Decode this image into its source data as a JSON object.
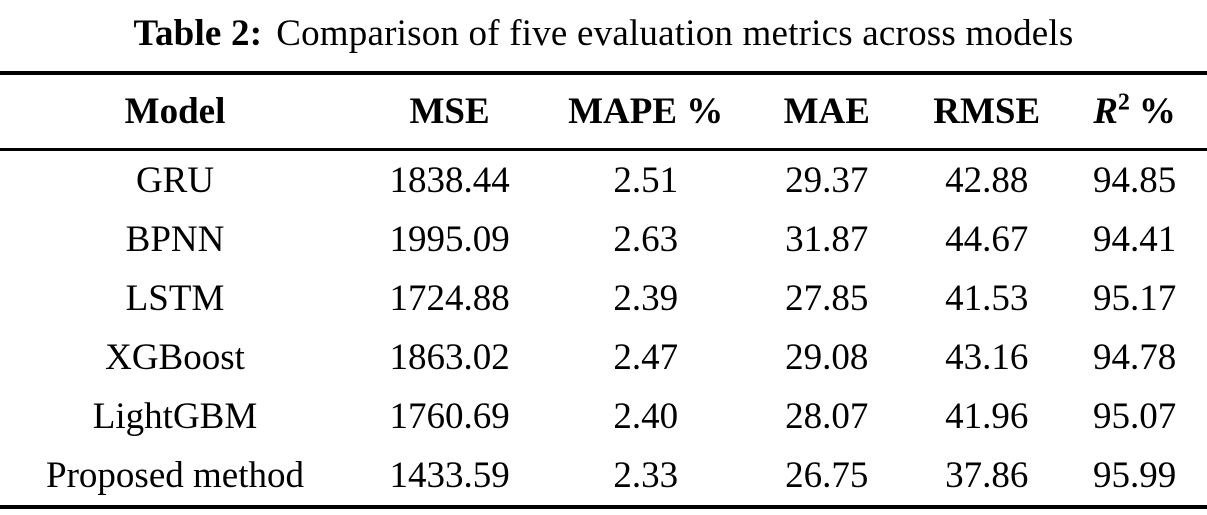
{
  "caption": {
    "label": "Table 2:",
    "text": "Comparison of five evaluation metrics across models"
  },
  "table": {
    "headers": {
      "model": "Model",
      "mse": "MSE",
      "mape": "MAPE %",
      "mae": "MAE",
      "rmse": "RMSE",
      "r2": {
        "base": "R",
        "sup": "2",
        "suffix": "%"
      }
    },
    "rows": [
      {
        "model": "GRU",
        "mse": "1838.44",
        "mape": "2.51",
        "mae": "29.37",
        "rmse": "42.88",
        "r2": "94.85"
      },
      {
        "model": "BPNN",
        "mse": "1995.09",
        "mape": "2.63",
        "mae": "31.87",
        "rmse": "44.67",
        "r2": "94.41"
      },
      {
        "model": "LSTM",
        "mse": "1724.88",
        "mape": "2.39",
        "mae": "27.85",
        "rmse": "41.53",
        "r2": "95.17"
      },
      {
        "model": "XGBoost",
        "mse": "1863.02",
        "mape": "2.47",
        "mae": "29.08",
        "rmse": "43.16",
        "r2": "94.78"
      },
      {
        "model": "LightGBM",
        "mse": "1760.69",
        "mape": "2.40",
        "mae": "28.07",
        "rmse": "41.96",
        "r2": "95.07"
      },
      {
        "model": "Proposed method",
        "mse": "1433.59",
        "mape": "2.33",
        "mae": "26.75",
        "rmse": "37.86",
        "r2": "95.99"
      }
    ]
  },
  "colors": {
    "text": "#000000",
    "background": "#ffffff",
    "rule": "#000000"
  },
  "chart_data": {
    "type": "table",
    "title": "Table 2: Comparison of five evaluation metrics across models",
    "columns": [
      "Model",
      "MSE",
      "MAPE %",
      "MAE",
      "RMSE",
      "R2 %"
    ],
    "rows": [
      [
        "GRU",
        1838.44,
        2.51,
        29.37,
        42.88,
        94.85
      ],
      [
        "BPNN",
        1995.09,
        2.63,
        31.87,
        44.67,
        94.41
      ],
      [
        "LSTM",
        1724.88,
        2.39,
        27.85,
        41.53,
        95.17
      ],
      [
        "XGBoost",
        1863.02,
        2.47,
        29.08,
        43.16,
        94.78
      ],
      [
        "LightGBM",
        1760.69,
        2.4,
        28.07,
        41.96,
        95.07
      ],
      [
        "Proposed method",
        1433.59,
        2.33,
        26.75,
        37.86,
        95.99
      ]
    ]
  }
}
